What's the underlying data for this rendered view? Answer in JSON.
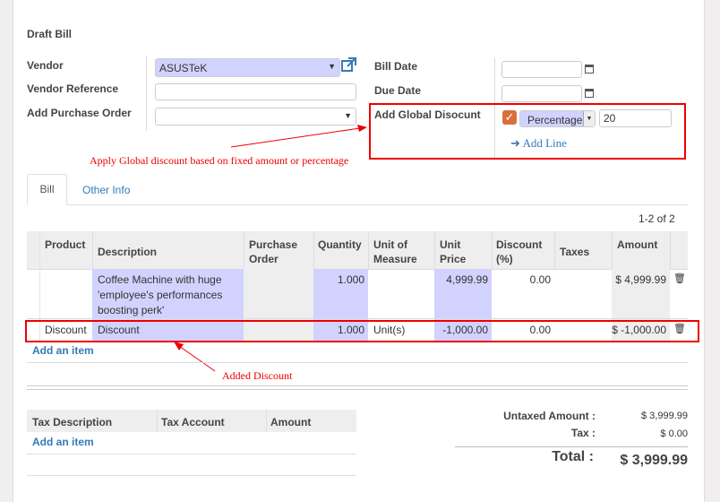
{
  "title": "Draft Bill",
  "form": {
    "vendor_label": "Vendor",
    "vendor_value": "ASUSTeK",
    "vendor_ref_label": "Vendor Reference",
    "vendor_ref_value": "",
    "po_label": "Add Purchase Order",
    "po_value": "",
    "bill_date_label": "Bill Date",
    "bill_date_value": "",
    "due_date_label": "Due Date",
    "due_date_value": "",
    "global_discount_label": "Add Global Disocunt",
    "global_discount_checked": true,
    "discount_type": "Percentage",
    "discount_value": "20",
    "add_line": "Add Line"
  },
  "annotations": {
    "global": "Apply Global discount based on fixed amount or percentage",
    "added": "Added Discount"
  },
  "tabs": [
    {
      "label": "Bill",
      "active": true
    },
    {
      "label": "Other Info",
      "active": false
    }
  ],
  "pager": "1-2 of 2",
  "lines": {
    "headers": [
      "Product",
      "Description",
      "Purchase Order",
      "Quantity",
      "Unit of Measure",
      "Unit Price",
      "Discount (%)",
      "Taxes",
      "Amount"
    ],
    "rows": [
      {
        "product": "",
        "description": "Coffee Machine with huge 'employee's performances boosting perk'",
        "po": "",
        "quantity": "1.000",
        "uom": "",
        "price": "4,999.99",
        "discount": "0.00",
        "taxes": "",
        "amount": "$ 4,999.99"
      },
      {
        "product": "Discount",
        "description": "Discount",
        "po": "",
        "quantity": "1.000",
        "uom": "Unit(s)",
        "price": "-1,000.00",
        "discount": "0.00",
        "taxes": "",
        "amount": "$ -1,000.00"
      }
    ],
    "add_item": "Add an item"
  },
  "tax": {
    "headers": [
      "Tax Description",
      "Tax Account",
      "Amount"
    ],
    "add_item": "Add an item"
  },
  "totals": {
    "untaxed_label": "Untaxed Amount :",
    "untaxed": "$ 3,999.99",
    "tax_label": "Tax :",
    "tax": "$ 0.00",
    "total_label": "Total :",
    "total": "$ 3,999.99"
  },
  "colors": {
    "accent": "#337ab7",
    "highlight": "#d2d2ff",
    "annotation": "#ee0000",
    "checkbox": "#d9703c"
  }
}
